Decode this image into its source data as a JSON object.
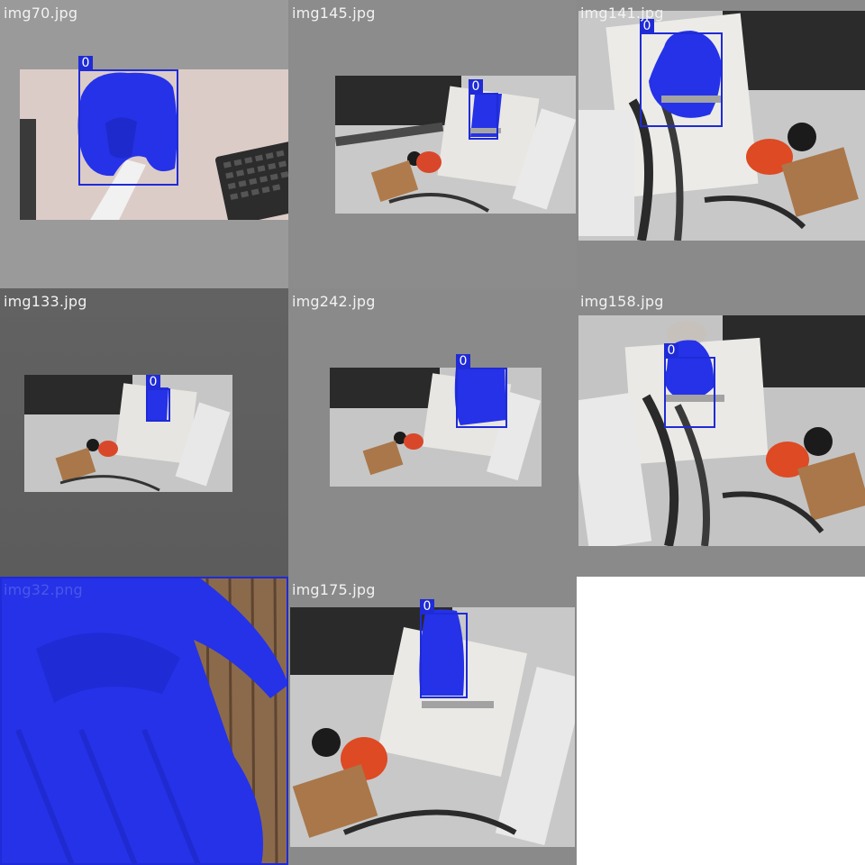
{
  "tiles": [
    {
      "filename": "img70.jpg",
      "class_label": "0"
    },
    {
      "filename": "img145.jpg",
      "class_label": "0"
    },
    {
      "filename": "img141.jpg",
      "class_label": "0"
    },
    {
      "filename": "img133.jpg",
      "class_label": "0"
    },
    {
      "filename": "img242.jpg",
      "class_label": "0"
    },
    {
      "filename": "img158.jpg",
      "class_label": "0"
    },
    {
      "filename": "img32.png",
      "class_label": "0"
    },
    {
      "filename": "img175.jpg",
      "class_label": "0"
    }
  ],
  "colors": {
    "mask_blue": "#2532e8",
    "box_blue": "#1f2bd6",
    "label_text": "#f2f2f2"
  }
}
